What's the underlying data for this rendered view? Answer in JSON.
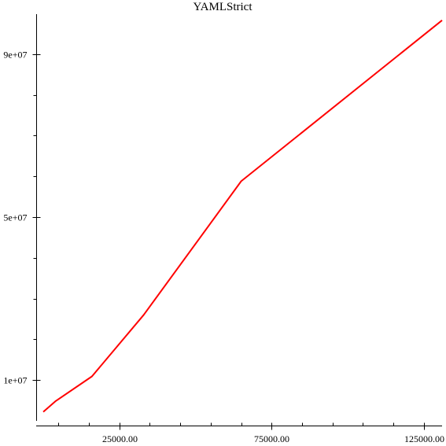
{
  "chart_data": {
    "type": "line",
    "title": "YAMLStrict",
    "xlabel": "",
    "ylabel": "",
    "xlim": [
      0,
      131000
    ],
    "ylim": [
      0,
      100000000
    ],
    "x_major_ticks": [
      25000,
      75000,
      125000
    ],
    "x_minor_ticks": [
      5000,
      15000,
      35000,
      45000,
      55000,
      65000,
      85000,
      95000,
      105000,
      115000
    ],
    "x_tick_labels": [
      "25000.00",
      "75000.00",
      "125000.00"
    ],
    "y_major_ticks": [
      10000000,
      50000000,
      90000000
    ],
    "y_minor_ticks": [
      20000000,
      30000000,
      40000000,
      60000000,
      70000000,
      80000000
    ],
    "y_tick_labels": [
      "1e+07",
      "5e+07",
      "9e+07"
    ],
    "grid": false,
    "series": [
      {
        "color": "#ff0000",
        "x": [
          0,
          4000,
          16000,
          33000,
          65000,
          131000
        ],
        "y": [
          2200000,
          4800000,
          10900000,
          26000000,
          58800000,
          98300000
        ]
      }
    ]
  }
}
